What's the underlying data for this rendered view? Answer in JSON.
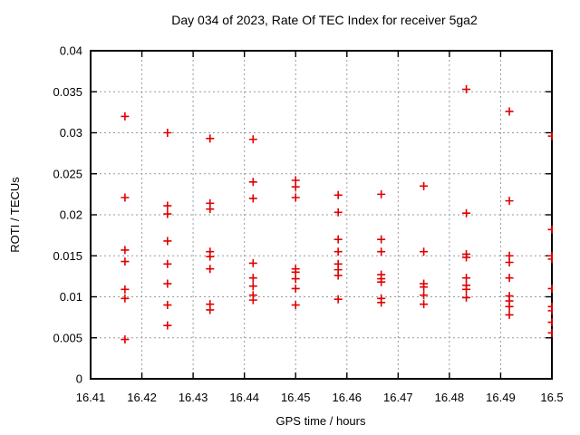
{
  "chart_data": {
    "type": "scatter",
    "title": "Day 034 of 2023, Rate Of TEC Index for receiver 5ga2",
    "xlabel": "GPS time / hours",
    "ylabel": "ROTI / TECUs",
    "xlim": [
      16.41,
      16.5
    ],
    "ylim": [
      0,
      0.04
    ],
    "grid": {
      "show": true,
      "style": "dashed",
      "color": "#9a9a9a"
    },
    "legend": "none",
    "marker": {
      "shape": "plus",
      "color": "#e00000",
      "size": 4.5
    },
    "xticks": [
      {
        "v": 16.41,
        "label": "16.41"
      },
      {
        "v": 16.42,
        "label": "16.42"
      },
      {
        "v": 16.43,
        "label": "16.43"
      },
      {
        "v": 16.44,
        "label": "16.44"
      },
      {
        "v": 16.45,
        "label": "16.45"
      },
      {
        "v": 16.46,
        "label": "16.46"
      },
      {
        "v": 16.47,
        "label": "16.47"
      },
      {
        "v": 16.48,
        "label": "16.48"
      },
      {
        "v": 16.49,
        "label": "16.49"
      },
      {
        "v": 16.5,
        "label": "16.5"
      }
    ],
    "yticks": [
      {
        "v": 0,
        "label": "0"
      },
      {
        "v": 0.005,
        "label": "0.005"
      },
      {
        "v": 0.01,
        "label": "0.01"
      },
      {
        "v": 0.015,
        "label": "0.015"
      },
      {
        "v": 0.02,
        "label": "0.02"
      },
      {
        "v": 0.025,
        "label": "0.025"
      },
      {
        "v": 0.03,
        "label": "0.03"
      },
      {
        "v": 0.035,
        "label": "0.035"
      },
      {
        "v": 0.04,
        "label": "0.04"
      }
    ],
    "series": [
      {
        "name": "ROTI",
        "groups": [
          {
            "x": 16.4167,
            "y": [
              0.032,
              0.0221,
              0.0157,
              0.0143,
              0.0109,
              0.0098,
              0.0048
            ]
          },
          {
            "x": 16.425,
            "y": [
              0.03,
              0.0211,
              0.0201,
              0.0168,
              0.014,
              0.0116,
              0.009,
              0.0065
            ]
          },
          {
            "x": 16.4333,
            "y": [
              0.0293,
              0.0214,
              0.0207,
              0.0155,
              0.0149,
              0.0134,
              0.0091,
              0.0084
            ]
          },
          {
            "x": 16.4417,
            "y": [
              0.0292,
              0.024,
              0.022,
              0.0141,
              0.0123,
              0.0113,
              0.0102,
              0.0096
            ]
          },
          {
            "x": 16.45,
            "y": [
              0.0242,
              0.0234,
              0.0221,
              0.0134,
              0.013,
              0.0122,
              0.011,
              0.009
            ]
          },
          {
            "x": 16.4583,
            "y": [
              0.0224,
              0.0203,
              0.017,
              0.0155,
              0.014,
              0.0133,
              0.0126,
              0.0097
            ]
          },
          {
            "x": 16.4667,
            "y": [
              0.0225,
              0.017,
              0.0155,
              0.0127,
              0.0122,
              0.0118,
              0.0098,
              0.0093
            ]
          },
          {
            "x": 16.475,
            "y": [
              0.0235,
              0.0155,
              0.0116,
              0.0112,
              0.0102,
              0.0091
            ]
          },
          {
            "x": 16.4833,
            "y": [
              0.0353,
              0.0202,
              0.0152,
              0.0148,
              0.0123,
              0.0114,
              0.0109,
              0.0099
            ]
          },
          {
            "x": 16.4917,
            "y": [
              0.0326,
              0.0217,
              0.015,
              0.0142,
              0.0123,
              0.0101,
              0.0095,
              0.0088,
              0.0078
            ]
          },
          {
            "x": 16.5,
            "y": [
              0.0296,
              0.0182,
              0.015,
              0.0146,
              0.011,
              0.0088,
              0.0083,
              0.0069,
              0.0056
            ]
          }
        ]
      }
    ]
  }
}
